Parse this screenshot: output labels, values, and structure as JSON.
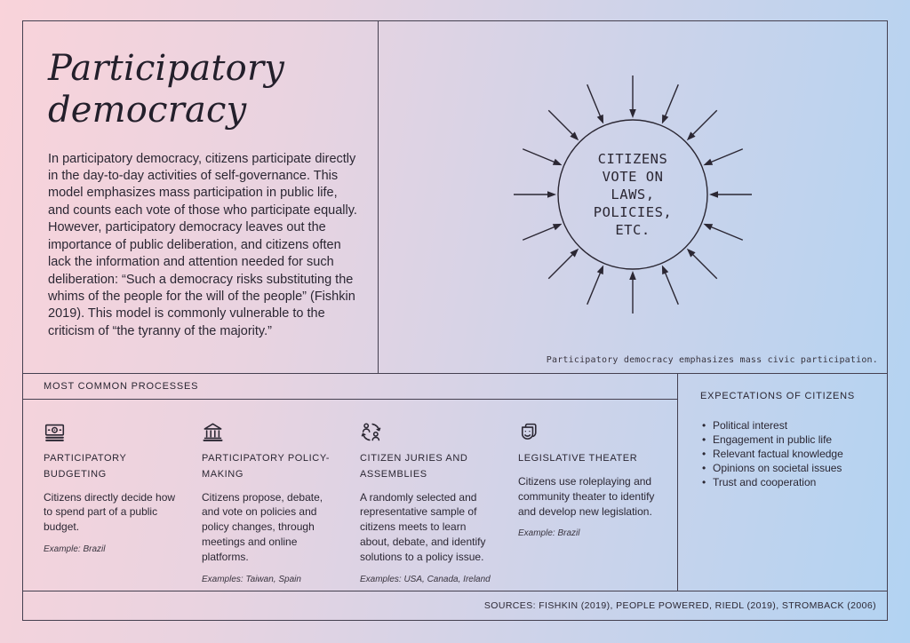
{
  "page": {
    "title": "Participatory democracy",
    "intro": "In participatory democracy, citizens participate directly in the day-to-day activities of self-governance. This model emphasizes mass participation in public life, and counts each vote of those who participate equally. However, participatory democracy leaves out the importance of public deliberation, and citizens often lack the information and attention needed for such deliberation: “Such a democracy risks substituting the whims of the people for the will of the people” (Fishkin 2019). This model is commonly vulnerable to the criticism of “the tyranny of the majority.”"
  },
  "diagram": {
    "circle_text": "CITIZENS\nVOTE ON\nLAWS,\nPOLICIES,\nETC.",
    "caption": "Participatory democracy emphasizes mass civic participation.",
    "arrow_count": 16,
    "line_color": "#2b2733"
  },
  "processes": {
    "heading": "MOST COMMON PROCESSES",
    "items": [
      {
        "icon": "banknote-icon",
        "title": "PARTICIPATORY BUDGETING",
        "description": "Citizens directly decide how to spend part of a public budget.",
        "example": "Example: Brazil"
      },
      {
        "icon": "government-building-icon",
        "title": "PARTICIPATORY POLICY-MAKING",
        "description": "Citizens propose, debate, and vote on policies and policy changes, through meetings and online platforms.",
        "example": "Examples: Taiwan, Spain"
      },
      {
        "icon": "people-exchange-icon",
        "title": "CITIZEN JURIES AND ASSEMBLIES",
        "description": "A randomly selected and representative sample of citizens meets to learn about, debate, and identify solutions to a policy issue.",
        "example": "Examples: USA, Canada, Ireland"
      },
      {
        "icon": "theater-masks-icon",
        "title": "LEGISLATIVE THEATER",
        "description": "Citizens use roleplaying and community theater to identify and develop new legislation.",
        "example": "Example: Brazil"
      }
    ]
  },
  "expectations": {
    "heading": "EXPECTATIONS OF CITIZENS",
    "items": [
      "Political interest",
      "Engagement in public life",
      "Relevant factual knowledge",
      "Opinions on societal issues",
      "Trust and cooperation"
    ]
  },
  "footer": {
    "sources": "SOURCES: FISHKIN (2019), PEOPLE POWERED, RIEDL (2019), STROMBACK (2006)"
  },
  "colors": {
    "background_start": "#f9d3da",
    "background_end": "#b2d3f2",
    "border": "#454050",
    "text": "#2b2733"
  }
}
